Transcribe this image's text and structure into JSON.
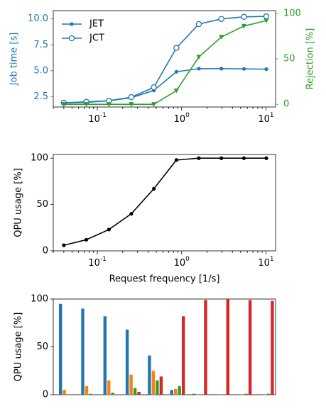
{
  "colors": {
    "jet": "#1f77b4",
    "jct": "#1f77b4",
    "rejection": "#2ca02c",
    "qpu": "#000000",
    "bars": [
      "#1f77b4",
      "#ff7f0e",
      "#2ca02c",
      "#d62728"
    ]
  },
  "chart_data": [
    {
      "type": "line",
      "title": "",
      "xscale": "log",
      "xlim": [
        0.03,
        13
      ],
      "ylabel": "Job time [s]",
      "ylim": [
        1.5,
        10.8
      ],
      "yticks": [
        2.5,
        5.0,
        7.5,
        10.0
      ],
      "y2label": "Rejection [%]",
      "y2lim": [
        -3,
        103
      ],
      "y2ticks": [
        0,
        50,
        100
      ],
      "xticks": [
        "10^-1",
        "10^0",
        "10^1"
      ],
      "legend": {
        "placement": "top-left",
        "entries": [
          "JET",
          "JCT"
        ]
      },
      "grid": false,
      "series": [
        {
          "name": "JET",
          "axis": "left",
          "marker": "dot",
          "x": [
            0.04,
            0.074,
            0.137,
            0.253,
            0.468,
            0.866,
            1.6,
            2.96,
            5.48,
            10.1
          ],
          "y": [
            1.9,
            1.95,
            2.1,
            2.4,
            3.1,
            4.9,
            5.2,
            5.2,
            5.18,
            5.15
          ]
        },
        {
          "name": "JCT",
          "axis": "left",
          "marker": "open-circle",
          "x": [
            0.04,
            0.074,
            0.137,
            0.253,
            0.468,
            0.866,
            1.6,
            2.96,
            5.48,
            10.1
          ],
          "y": [
            1.9,
            2.0,
            2.1,
            2.45,
            3.4,
            7.2,
            9.5,
            10.0,
            10.2,
            10.25
          ]
        },
        {
          "name": "",
          "axis": "right",
          "marker": "triangle-down",
          "x": [
            0.04,
            0.074,
            0.137,
            0.253,
            0.468,
            0.866,
            1.6,
            2.96,
            5.48,
            10.1
          ],
          "y": [
            0,
            0,
            0,
            0,
            0,
            15,
            52,
            74,
            86,
            92
          ]
        }
      ]
    },
    {
      "type": "line",
      "title": "",
      "xscale": "log",
      "xlim": [
        0.03,
        13
      ],
      "ylabel": "QPU usage [%]",
      "xlabel": "Request frequency [1/s]",
      "ylim": [
        0,
        104
      ],
      "yticks": [
        0,
        50,
        100
      ],
      "xticks": [
        "10^-1",
        "10^0",
        "10^1"
      ],
      "grid": false,
      "series": [
        {
          "marker": "dot",
          "x": [
            0.04,
            0.074,
            0.137,
            0.253,
            0.468,
            0.866,
            1.6,
            2.96,
            5.48,
            10.1
          ],
          "y": [
            6,
            12,
            23,
            40,
            67,
            98,
            100,
            100,
            100,
            100
          ]
        }
      ]
    },
    {
      "type": "bar",
      "title": "",
      "ylabel": "QPU usage [%]",
      "ylim": [
        0,
        100
      ],
      "yticks": [
        0,
        50,
        100
      ],
      "grid": false,
      "groups": 10,
      "series": [
        {
          "values": [
            95,
            90,
            82,
            68,
            41,
            5,
            1,
            0,
            0,
            0
          ]
        },
        {
          "values": [
            5,
            9,
            15,
            21,
            25,
            6,
            0,
            0,
            0,
            0
          ]
        },
        {
          "values": [
            0,
            1,
            2,
            7,
            15,
            9,
            0,
            0,
            1,
            1
          ]
        },
        {
          "values": [
            0,
            0,
            0,
            3,
            19,
            82,
            99,
            100,
            99,
            98
          ]
        }
      ]
    }
  ]
}
